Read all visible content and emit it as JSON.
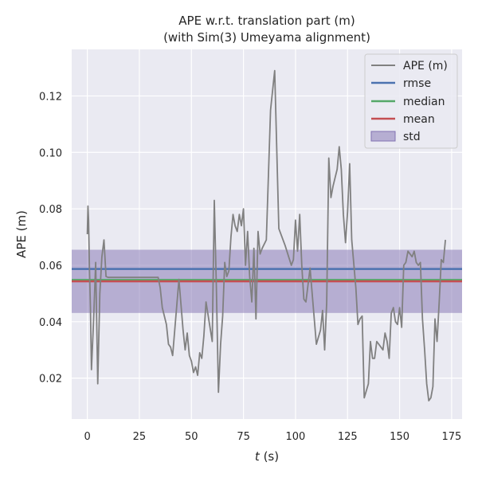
{
  "chart_data": {
    "type": "line",
    "title": [
      "APE w.r.t. translation part (m)",
      "(with Sim(3) Umeyama alignment)"
    ],
    "xlabel_var": "t",
    "xlabel_unit": " (s)",
    "ylabel": "APE (m)",
    "xlim": [
      -7.5,
      180
    ],
    "ylim": [
      0.0055,
      0.1365
    ],
    "xticks": [
      0,
      25,
      50,
      75,
      100,
      125,
      150,
      175
    ],
    "yticks": [
      0.02,
      0.04,
      0.06,
      0.08,
      0.1,
      0.12
    ],
    "ytick_labels": [
      "0.02",
      "0.04",
      "0.06",
      "0.08",
      "0.10",
      "0.12"
    ],
    "grid": true,
    "legend_position": "top-right",
    "colors": {
      "background": "#eaeaf2",
      "grid": "#ffffff",
      "ape": "#808080",
      "rmse": "#4c72b0",
      "median": "#55a868",
      "mean": "#c44e52",
      "std": "#8172b2"
    },
    "stats": {
      "rmse": 0.0587,
      "median": 0.0548,
      "mean": 0.0543,
      "std_low": 0.0431,
      "std_high": 0.0655
    },
    "series": [
      {
        "name": "APE (m)",
        "x": [
          0,
          0.3,
          0.6,
          1,
          1.5,
          2,
          3,
          4,
          5,
          6,
          7,
          8,
          9,
          10,
          20,
          30,
          34,
          35,
          36,
          38,
          39,
          40,
          41,
          44,
          46,
          47,
          48,
          49,
          50,
          51,
          52,
          53,
          54,
          55,
          56,
          57,
          60,
          61,
          62,
          63,
          64,
          65,
          66,
          67,
          68,
          69,
          70,
          71,
          72,
          73,
          74,
          75,
          76,
          77,
          78,
          79,
          80,
          81,
          82,
          83,
          84,
          86,
          88,
          90,
          92,
          95,
          98,
          99,
          100,
          101,
          102,
          103,
          104,
          105,
          107,
          110,
          112,
          113,
          114,
          115,
          116,
          117,
          118,
          120,
          121,
          122,
          123,
          124,
          125,
          126,
          127,
          129,
          130,
          131,
          132,
          133,
          135,
          136,
          137,
          138,
          139,
          140,
          142,
          143,
          144,
          145,
          146,
          147,
          148,
          149,
          150,
          151,
          152,
          153,
          154,
          155,
          156,
          157,
          158,
          159,
          160,
          161,
          162,
          163,
          164,
          165,
          166,
          167,
          168,
          169,
          170,
          171,
          172
        ],
        "y": [
          0.071,
          0.081,
          0.076,
          0.06,
          0.045,
          0.023,
          0.04,
          0.061,
          0.018,
          0.05,
          0.063,
          0.069,
          0.056,
          0.0557,
          0.0557,
          0.0557,
          0.0557,
          0.052,
          0.045,
          0.039,
          0.032,
          0.031,
          0.028,
          0.055,
          0.037,
          0.03,
          0.036,
          0.028,
          0.026,
          0.022,
          0.024,
          0.021,
          0.029,
          0.027,
          0.035,
          0.047,
          0.033,
          0.083,
          0.052,
          0.015,
          0.032,
          0.042,
          0.061,
          0.056,
          0.058,
          0.07,
          0.078,
          0.074,
          0.072,
          0.078,
          0.074,
          0.08,
          0.06,
          0.072,
          0.056,
          0.047,
          0.066,
          0.041,
          0.072,
          0.064,
          0.066,
          0.069,
          0.115,
          0.129,
          0.073,
          0.067,
          0.06,
          0.062,
          0.076,
          0.065,
          0.078,
          0.06,
          0.048,
          0.047,
          0.059,
          0.032,
          0.037,
          0.044,
          0.03,
          0.047,
          0.098,
          0.084,
          0.088,
          0.094,
          0.102,
          0.094,
          0.078,
          0.068,
          0.079,
          0.096,
          0.069,
          0.052,
          0.039,
          0.041,
          0.042,
          0.013,
          0.018,
          0.033,
          0.027,
          0.027,
          0.033,
          0.032,
          0.03,
          0.036,
          0.033,
          0.027,
          0.043,
          0.045,
          0.04,
          0.039,
          0.045,
          0.038,
          0.06,
          0.061,
          0.065,
          0.064,
          0.063,
          0.065,
          0.061,
          0.06,
          0.061,
          0.041,
          0.03,
          0.018,
          0.012,
          0.013,
          0.017,
          0.041,
          0.033,
          0.047,
          0.062,
          0.061,
          0.069
        ]
      }
    ],
    "legend": [
      {
        "label": "APE (m)",
        "kind": "line",
        "key": "ape"
      },
      {
        "label": "rmse",
        "kind": "line",
        "key": "rmse"
      },
      {
        "label": "median",
        "kind": "line",
        "key": "median"
      },
      {
        "label": "mean",
        "kind": "line",
        "key": "mean"
      },
      {
        "label": "std",
        "kind": "patch",
        "key": "std"
      }
    ]
  }
}
